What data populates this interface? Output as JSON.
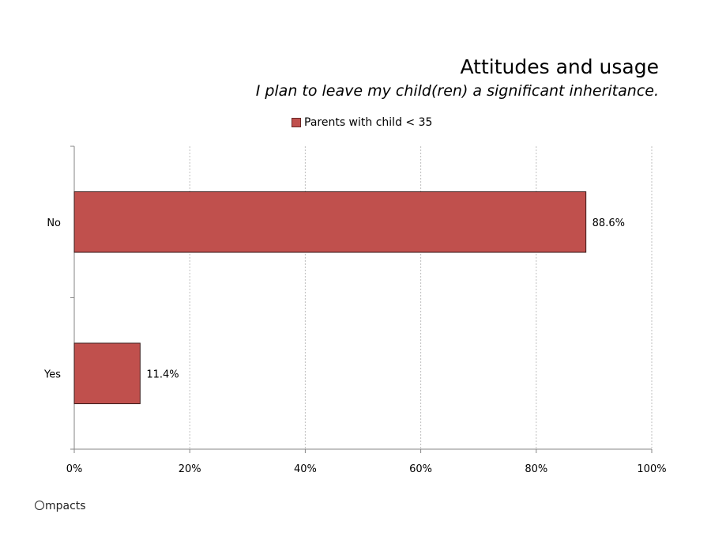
{
  "chart_data": {
    "type": "bar",
    "orientation": "horizontal",
    "title": "Attitudes and usage",
    "subtitle": "I plan to leave my child(ren) a significant inheritance.",
    "categories": [
      "No",
      "Yes"
    ],
    "series": [
      {
        "name": "Parents with child < 35",
        "values": [
          88.6,
          11.4
        ],
        "color": "#c0504d",
        "data_labels": [
          "88.6%",
          "11.4%"
        ]
      }
    ],
    "x_ticks": [
      "0%",
      "20%",
      "40%",
      "60%",
      "80%",
      "100%"
    ],
    "xlim": [
      0,
      100
    ],
    "grid": true,
    "legend_position": "top",
    "xlabel": "",
    "ylabel": ""
  },
  "footer": {
    "brand_text": "mpacts"
  }
}
